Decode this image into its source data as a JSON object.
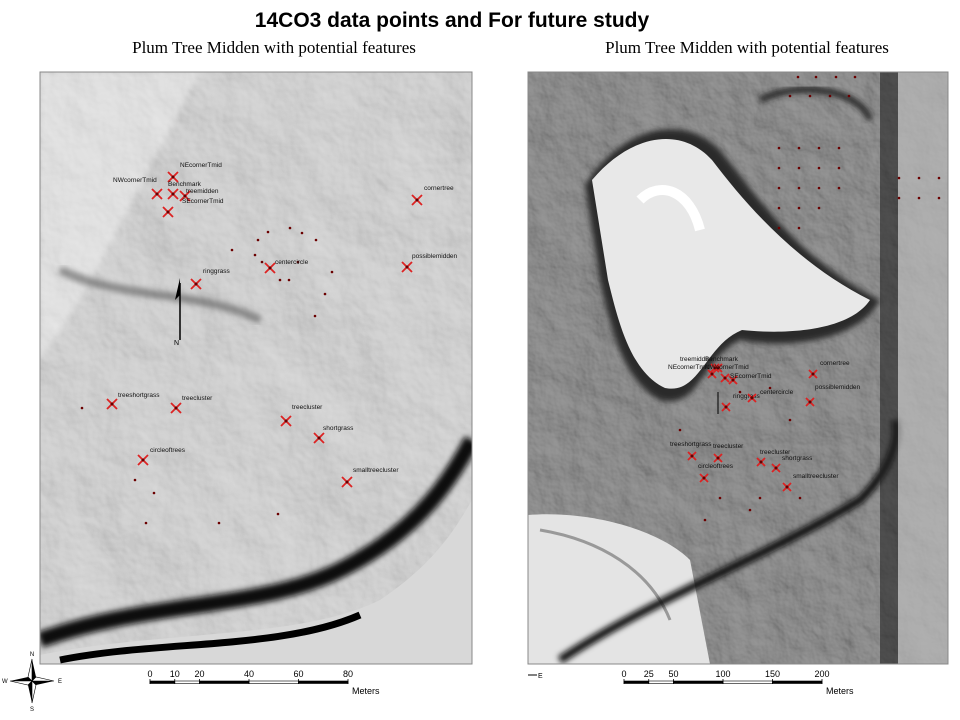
{
  "title": "14CO3 data points and For future study",
  "maps": [
    {
      "caption": "Plum Tree Midden with potential features",
      "features": [
        "NEcornerTmid",
        "NWcornerTmid",
        "Benchmark",
        "treemidden",
        "SEcornerTmid",
        "cornertree",
        "centercircle",
        "possiblemidden",
        "ringgrass",
        "treeshortgrass",
        "treecluster",
        "treecluster",
        "circleoftrees",
        "shortgrass",
        "smalltreecluster"
      ],
      "north_label": "N",
      "scale": {
        "ticks": [
          0,
          10,
          20,
          40,
          60,
          80
        ],
        "unit": "Meters"
      }
    },
    {
      "caption": "Plum Tree Midden with potential features",
      "features": [
        "treemidden",
        "Benchmark",
        "NEcornerTmid",
        "NWcornerTmid",
        "SEcornerTmid",
        "cornertree",
        "ringgrass",
        "centercircle",
        "possiblemidden",
        "treeshortgrass",
        "treecluster",
        "circleoftrees",
        "treecluster",
        "shortgrass",
        "smalltreecluster"
      ],
      "orientation_label": "E",
      "scale": {
        "ticks": [
          0,
          25,
          50,
          100,
          150,
          200
        ],
        "unit": "Meters"
      }
    }
  ],
  "compass": {
    "n": "N",
    "e": "E",
    "s": "S",
    "w": "W"
  }
}
